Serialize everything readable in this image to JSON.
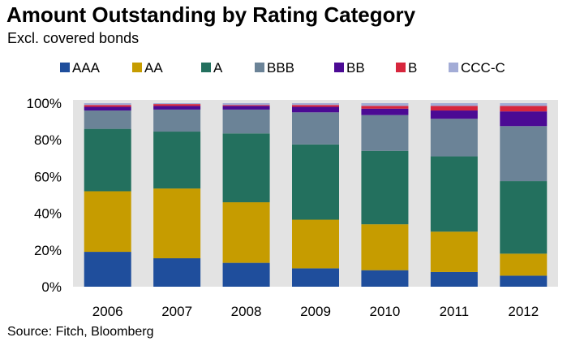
{
  "header": {
    "title": "Amount Outstanding by Rating Category",
    "subtitle": "Excl. covered bonds"
  },
  "footer": {
    "source": "Source: Fitch, Bloomberg"
  },
  "chart_data": {
    "type": "bar",
    "stacked": true,
    "categories": [
      "2006",
      "2007",
      "2008",
      "2009",
      "2010",
      "2011",
      "2012"
    ],
    "series": [
      {
        "name": "AAA",
        "color": "#1f4e9c",
        "values": [
          19,
          15.5,
          13,
          10,
          9,
          8,
          6
        ]
      },
      {
        "name": "AA",
        "color": "#c69c00",
        "values": [
          33,
          38,
          33,
          26.5,
          25,
          22,
          12
        ]
      },
      {
        "name": "A",
        "color": "#23705e",
        "values": [
          34,
          31,
          37.5,
          41,
          40,
          41,
          39.5
        ]
      },
      {
        "name": "BBB",
        "color": "#6b8397",
        "values": [
          10,
          12,
          13,
          17.5,
          19.5,
          20.5,
          30
        ]
      },
      {
        "name": "BB",
        "color": "#4b0a94",
        "values": [
          2,
          2,
          2,
          3,
          3.5,
          4.5,
          8
        ]
      },
      {
        "name": "B",
        "color": "#d7263d",
        "values": [
          1,
          1,
          0.5,
          1,
          1.5,
          2.5,
          3
        ]
      },
      {
        "name": "CCC-C",
        "color": "#a3acd6",
        "values": [
          1,
          0.5,
          1,
          1,
          1.5,
          1.5,
          1.5
        ]
      }
    ],
    "yticks": [
      "0%",
      "20%",
      "40%",
      "60%",
      "80%",
      "100%"
    ],
    "ylim": [
      0,
      100
    ],
    "grid": false,
    "legend": "top",
    "background_color": "#e3e3e3"
  }
}
